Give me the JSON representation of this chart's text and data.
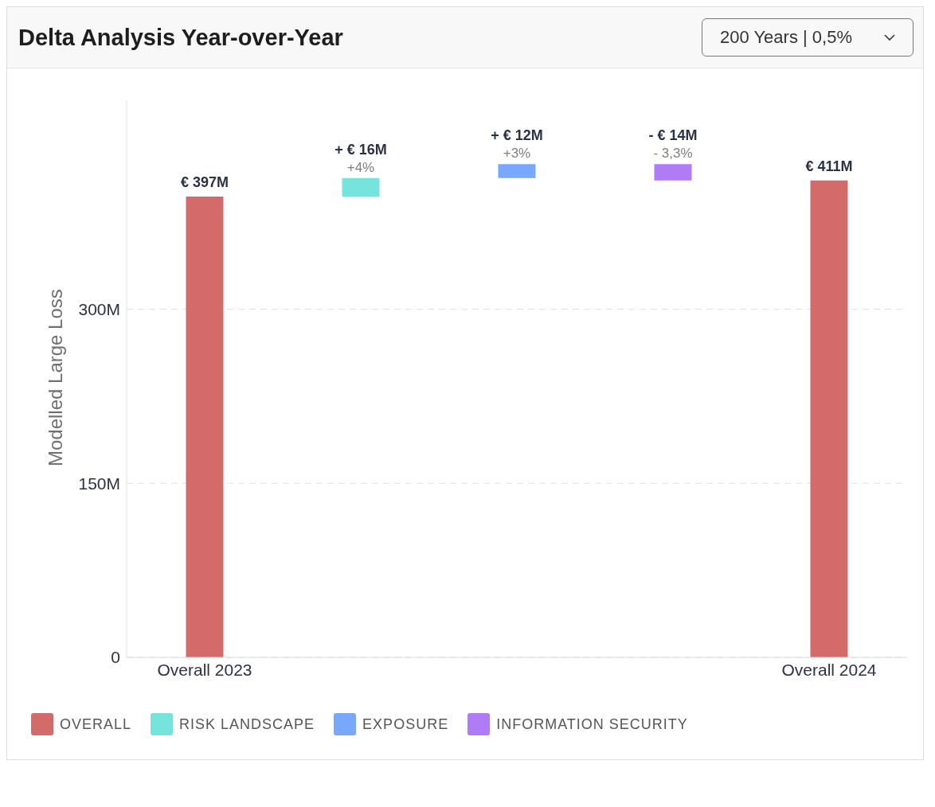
{
  "chart_data": {
    "type": "bar",
    "title": "Delta Analysis Year-over-Year",
    "ylabel": "Modelled Large Loss",
    "categories": [
      "Overall 2023",
      null,
      null,
      null,
      "Overall 2024"
    ],
    "series": [
      {
        "name": "OVERALL",
        "color": "#d46b6b",
        "values": [
          397,
          null,
          null,
          null,
          411
        ],
        "value_labels": [
          "€ 397M",
          null,
          null,
          null,
          "€ 411M"
        ]
      },
      {
        "name": "RISK LANDSCAPE",
        "color": "#76e4dc",
        "values": [
          null,
          16,
          null,
          null,
          null
        ],
        "base": [
          null,
          397,
          null,
          null,
          null
        ],
        "value_labels": [
          null,
          "+ € 16M",
          null,
          null,
          null
        ]
      },
      {
        "name": "EXPOSURE",
        "color": "#78a8fb",
        "values": [
          null,
          null,
          12,
          null,
          null
        ],
        "base": [
          null,
          null,
          413,
          null,
          null
        ],
        "value_labels": [
          null,
          null,
          "+ € 12M",
          null,
          null
        ]
      },
      {
        "name": "INFORMATION SECURITY",
        "color": "#b07cf6",
        "values": [
          null,
          null,
          null,
          -14,
          null
        ],
        "base": [
          null,
          null,
          null,
          425,
          null
        ],
        "value_labels": [
          null,
          null,
          null,
          "- € 14M",
          null
        ]
      }
    ],
    "annotations": [
      "200 Years | 0,5%",
      "+4%",
      "+3%",
      "- 3,3%"
    ],
    "ylim": [
      0,
      480
    ],
    "yticks": [
      0,
      {
        "value": 150,
        "label": "150M"
      },
      {
        "value": 300,
        "label": "300M"
      }
    ],
    "grid": "y",
    "legend": "bottom"
  }
}
